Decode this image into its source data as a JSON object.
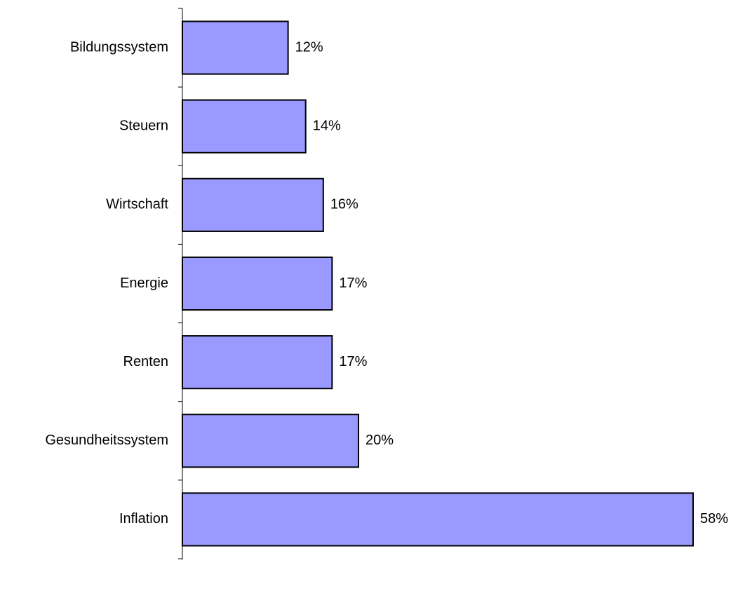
{
  "chart_data": {
    "type": "barh",
    "categories": [
      "Bildungssystem",
      "Steuern",
      "Wirtschaft",
      "Energie",
      "Renten",
      "Gesundheitssystem",
      "Inflation"
    ],
    "values": [
      12,
      14,
      16,
      17,
      17,
      20,
      58
    ],
    "value_labels": [
      "12%",
      "14%",
      "16%",
      "17%",
      "17%",
      "20%",
      "58%"
    ],
    "color": "#9999ff"
  }
}
